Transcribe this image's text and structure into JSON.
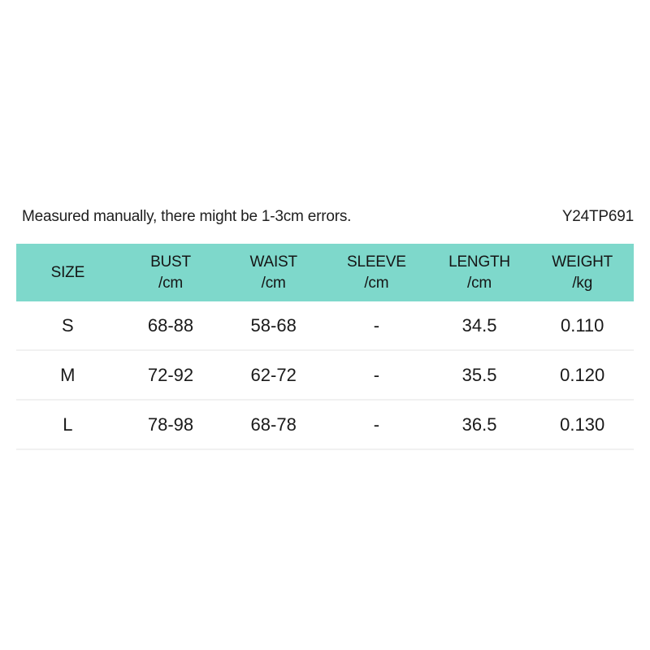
{
  "notice": {
    "text": "Measured manually, there might be 1-3cm errors.",
    "product_code": "Y24TP691"
  },
  "chart_data": {
    "type": "table",
    "title": "",
    "notes": "Measured manually, there might be 1-3cm errors.",
    "product_code": "Y24TP691",
    "columns": [
      {
        "label": "SIZE",
        "unit": ""
      },
      {
        "label": "BUST",
        "unit": "/cm"
      },
      {
        "label": "WAIST",
        "unit": "/cm"
      },
      {
        "label": "SLEEVE",
        "unit": "/cm"
      },
      {
        "label": "LENGTH",
        "unit": "/cm"
      },
      {
        "label": "WEIGHT",
        "unit": "/kg"
      }
    ],
    "rows": [
      [
        "S",
        "68-88",
        "58-68",
        "-",
        "34.5",
        "0.110"
      ],
      [
        "M",
        "72-92",
        "62-72",
        "-",
        "35.5",
        "0.120"
      ],
      [
        "L",
        "78-98",
        "68-78",
        "-",
        "36.5",
        "0.130"
      ]
    ],
    "layout": {
      "header_bg": "#7ed8cb",
      "divider_color": "#f1f1f1",
      "text_color": "#1a1a1a",
      "background": "#ffffff"
    }
  }
}
